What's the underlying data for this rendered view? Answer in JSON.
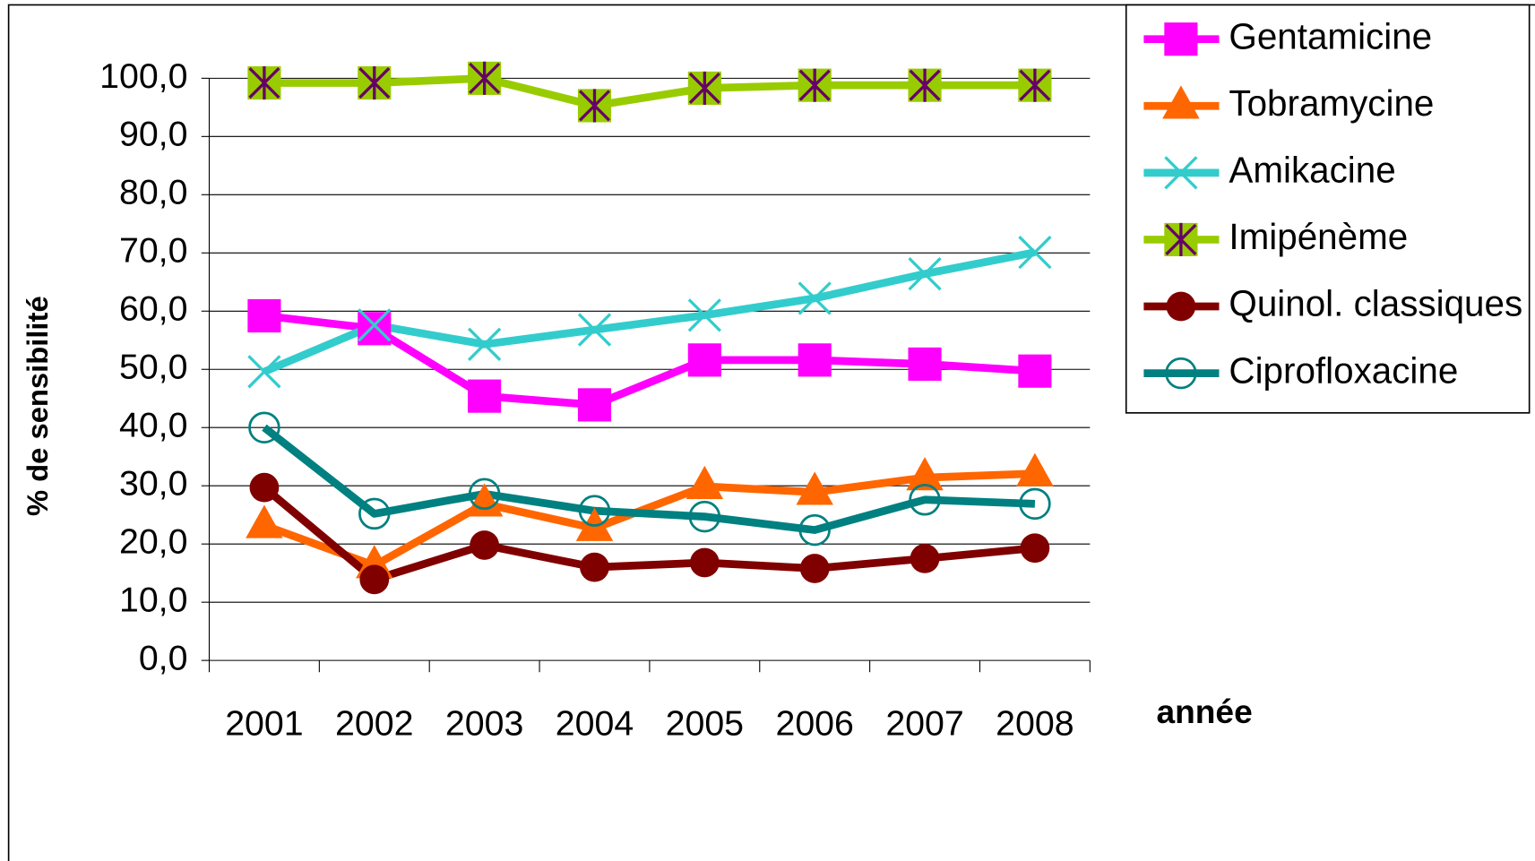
{
  "chart_data": {
    "type": "line",
    "y_label": "% de sensibilité",
    "x_label": "année",
    "categories": [
      "2001",
      "2002",
      "2003",
      "2004",
      "2005",
      "2006",
      "2007",
      "2008"
    ],
    "ylim": [
      0,
      100
    ],
    "yticks": [
      {
        "value": 0,
        "label": "0,0"
      },
      {
        "value": 10,
        "label": "10,0"
      },
      {
        "value": 20,
        "label": "20,0"
      },
      {
        "value": 30,
        "label": "30,0"
      },
      {
        "value": 40,
        "label": "40,0"
      },
      {
        "value": 50,
        "label": "50,0"
      },
      {
        "value": 60,
        "label": "60,0"
      },
      {
        "value": 70,
        "label": "70,0"
      },
      {
        "value": 80,
        "label": "80,0"
      },
      {
        "value": 90,
        "label": "90,0"
      },
      {
        "value": 100,
        "label": "100,0"
      }
    ],
    "grid": true,
    "legend": "top-right",
    "series": [
      {
        "name": "Gentamicine",
        "color": "#ff00ff",
        "marker": "square",
        "values": [
          59.2,
          57.0,
          45.4,
          43.9,
          51.6,
          51.6,
          50.9,
          49.7
        ]
      },
      {
        "name": "Tobramycine",
        "color": "#ff6600",
        "marker": "triangle",
        "values": [
          23.2,
          16.3,
          26.9,
          22.7,
          29.9,
          28.9,
          31.4,
          32.1
        ]
      },
      {
        "name": "Amikacine",
        "color": "#33cccc",
        "marker": "x",
        "values": [
          49.6,
          57.6,
          54.3,
          56.8,
          59.3,
          62.2,
          66.4,
          70.1
        ]
      },
      {
        "name": "Imipénème",
        "color": "#99cc00",
        "marker": "star",
        "values": [
          99.2,
          99.2,
          100,
          95.3,
          98.3,
          98.8,
          98.8,
          98.8
        ]
      },
      {
        "name": "Quinol. classiques",
        "color": "#800000",
        "marker": "circle",
        "values": [
          29.7,
          13.9,
          19.8,
          16.0,
          16.8,
          15.8,
          17.5,
          19.3
        ]
      },
      {
        "name": "Ciprofloxacine",
        "color": "#008080",
        "marker": "circle-open",
        "values": [
          40.0,
          25.2,
          28.6,
          25.7,
          24.7,
          22.4,
          27.6,
          26.9
        ]
      }
    ]
  }
}
